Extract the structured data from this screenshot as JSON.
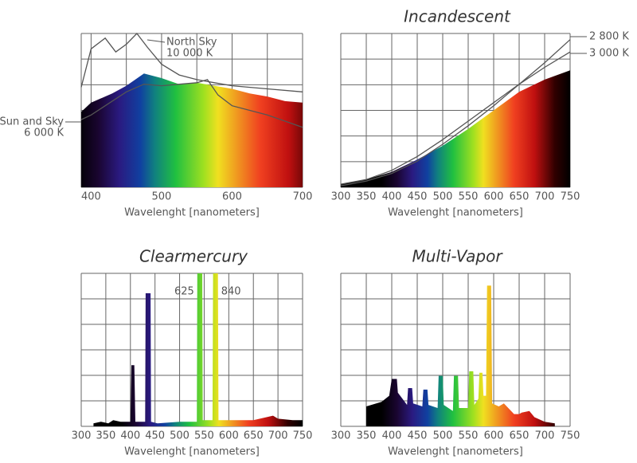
{
  "chart_data": [
    {
      "type": "area",
      "x_label": "Wavelenght [nanometers]",
      "xlim": [
        386,
        700
      ],
      "xticks": [
        400,
        500,
        600,
        700
      ],
      "ylim": [
        0,
        100
      ],
      "grid": true,
      "series": [
        {
          "style": "spectrum",
          "x": [
            386,
            400,
            430,
            450,
            475,
            500,
            525,
            550,
            575,
            600,
            625,
            650,
            675,
            700
          ],
          "values": [
            49,
            55,
            61,
            66,
            74,
            71,
            67,
            68,
            66,
            64,
            61,
            59,
            56,
            55
          ]
        },
        {
          "style": "line",
          "color": "#555555",
          "name": "North Sky",
          "label": "10 000 K",
          "x": [
            386,
            400,
            420,
            435,
            450,
            465,
            480,
            500,
            525,
            550,
            575,
            600,
            650,
            700
          ],
          "values": [
            65,
            90,
            97,
            88,
            93,
            100,
            91,
            80,
            73,
            70,
            68,
            66,
            64,
            62
          ]
        },
        {
          "style": "line",
          "color": "#555555",
          "name": "Sun and Sky",
          "label": "6 000 K",
          "x": [
            386,
            400,
            450,
            475,
            500,
            525,
            550,
            565,
            580,
            600,
            650,
            700
          ],
          "values": [
            44,
            47,
            62,
            67,
            66,
            67,
            68,
            70,
            60,
            53,
            47,
            39
          ]
        }
      ]
    },
    {
      "type": "area",
      "title": "Incandescent",
      "x_label": "Wavelenght [nanometers]",
      "xlim": [
        300,
        750
      ],
      "xticks": [
        300,
        350,
        400,
        450,
        500,
        550,
        600,
        650,
        700,
        750
      ],
      "ylim": [
        0,
        100
      ],
      "grid": true,
      "series": [
        {
          "style": "spectrum",
          "x": [
            300,
            350,
            400,
            450,
            500,
            550,
            600,
            650,
            700,
            750
          ],
          "values": [
            2,
            5,
            10,
            18,
            27,
            38,
            50,
            62,
            70,
            76
          ]
        },
        {
          "style": "line",
          "color": "#555555",
          "name": "2 800 K",
          "x": [
            300,
            350,
            400,
            450,
            500,
            550,
            600,
            650,
            700,
            750
          ],
          "values": [
            1,
            4,
            9,
            17,
            28,
            40,
            53,
            67,
            81,
            96
          ]
        },
        {
          "style": "line",
          "color": "#555555",
          "name": "3 000 K",
          "x": [
            300,
            350,
            400,
            450,
            500,
            550,
            600,
            650,
            700,
            750
          ],
          "values": [
            2,
            5,
            11,
            20,
            31,
            43,
            55,
            67,
            78,
            88
          ]
        }
      ]
    },
    {
      "type": "area",
      "title": "Clearmercury",
      "x_label": "Wavelenght [nanometers]",
      "xlim": [
        300,
        750
      ],
      "xticks": [
        300,
        350,
        400,
        450,
        500,
        550,
        600,
        650,
        700,
        750
      ],
      "ylim": [
        0,
        100
      ],
      "grid": true,
      "series": [
        {
          "style": "spectrum",
          "x": [
            325,
            340,
            355,
            365,
            380,
            400,
            402,
            408,
            410,
            430,
            431,
            441,
            442,
            455,
            500,
            535,
            536,
            546,
            547,
            567,
            568,
            578,
            579,
            600,
            650,
            690,
            700,
            730,
            750
          ],
          "values": [
            2,
            3,
            2,
            4,
            3,
            3,
            40,
            40,
            3,
            3,
            87,
            87,
            3,
            2,
            3,
            3,
            100,
            100,
            4,
            4,
            100,
            100,
            4,
            4,
            4,
            7,
            5,
            4,
            4
          ]
        }
      ],
      "annotations": [
        {
          "text": "625",
          "x": 536
        },
        {
          "text": "840",
          "x": 578
        }
      ]
    },
    {
      "type": "area",
      "title": "Multi-Vapor",
      "x_label": "Wavelenght [nanometers]",
      "xlim": [
        300,
        750
      ],
      "xticks": [
        300,
        350,
        400,
        450,
        500,
        550,
        600,
        650,
        700,
        750
      ],
      "ylim": [
        0,
        100
      ],
      "grid": true,
      "series": [
        {
          "style": "spectrum",
          "x": [
            350,
            380,
            395,
            400,
            410,
            412,
            430,
            432,
            440,
            442,
            460,
            462,
            470,
            472,
            490,
            492,
            500,
            502,
            520,
            522,
            530,
            532,
            550,
            552,
            560,
            562,
            570,
            572,
            578,
            580,
            585,
            587,
            595,
            597,
            610,
            620,
            640,
            650,
            655,
            670,
            680,
            700,
            720
          ],
          "values": [
            13,
            16,
            20,
            31,
            31,
            22,
            14,
            25,
            25,
            15,
            13,
            24,
            24,
            14,
            12,
            33,
            33,
            14,
            10,
            33,
            33,
            12,
            12,
            36,
            36,
            14,
            18,
            35,
            35,
            20,
            20,
            92,
            92,
            15,
            13,
            15,
            8,
            8,
            9,
            10,
            6,
            3,
            2
          ]
        }
      ]
    }
  ]
}
